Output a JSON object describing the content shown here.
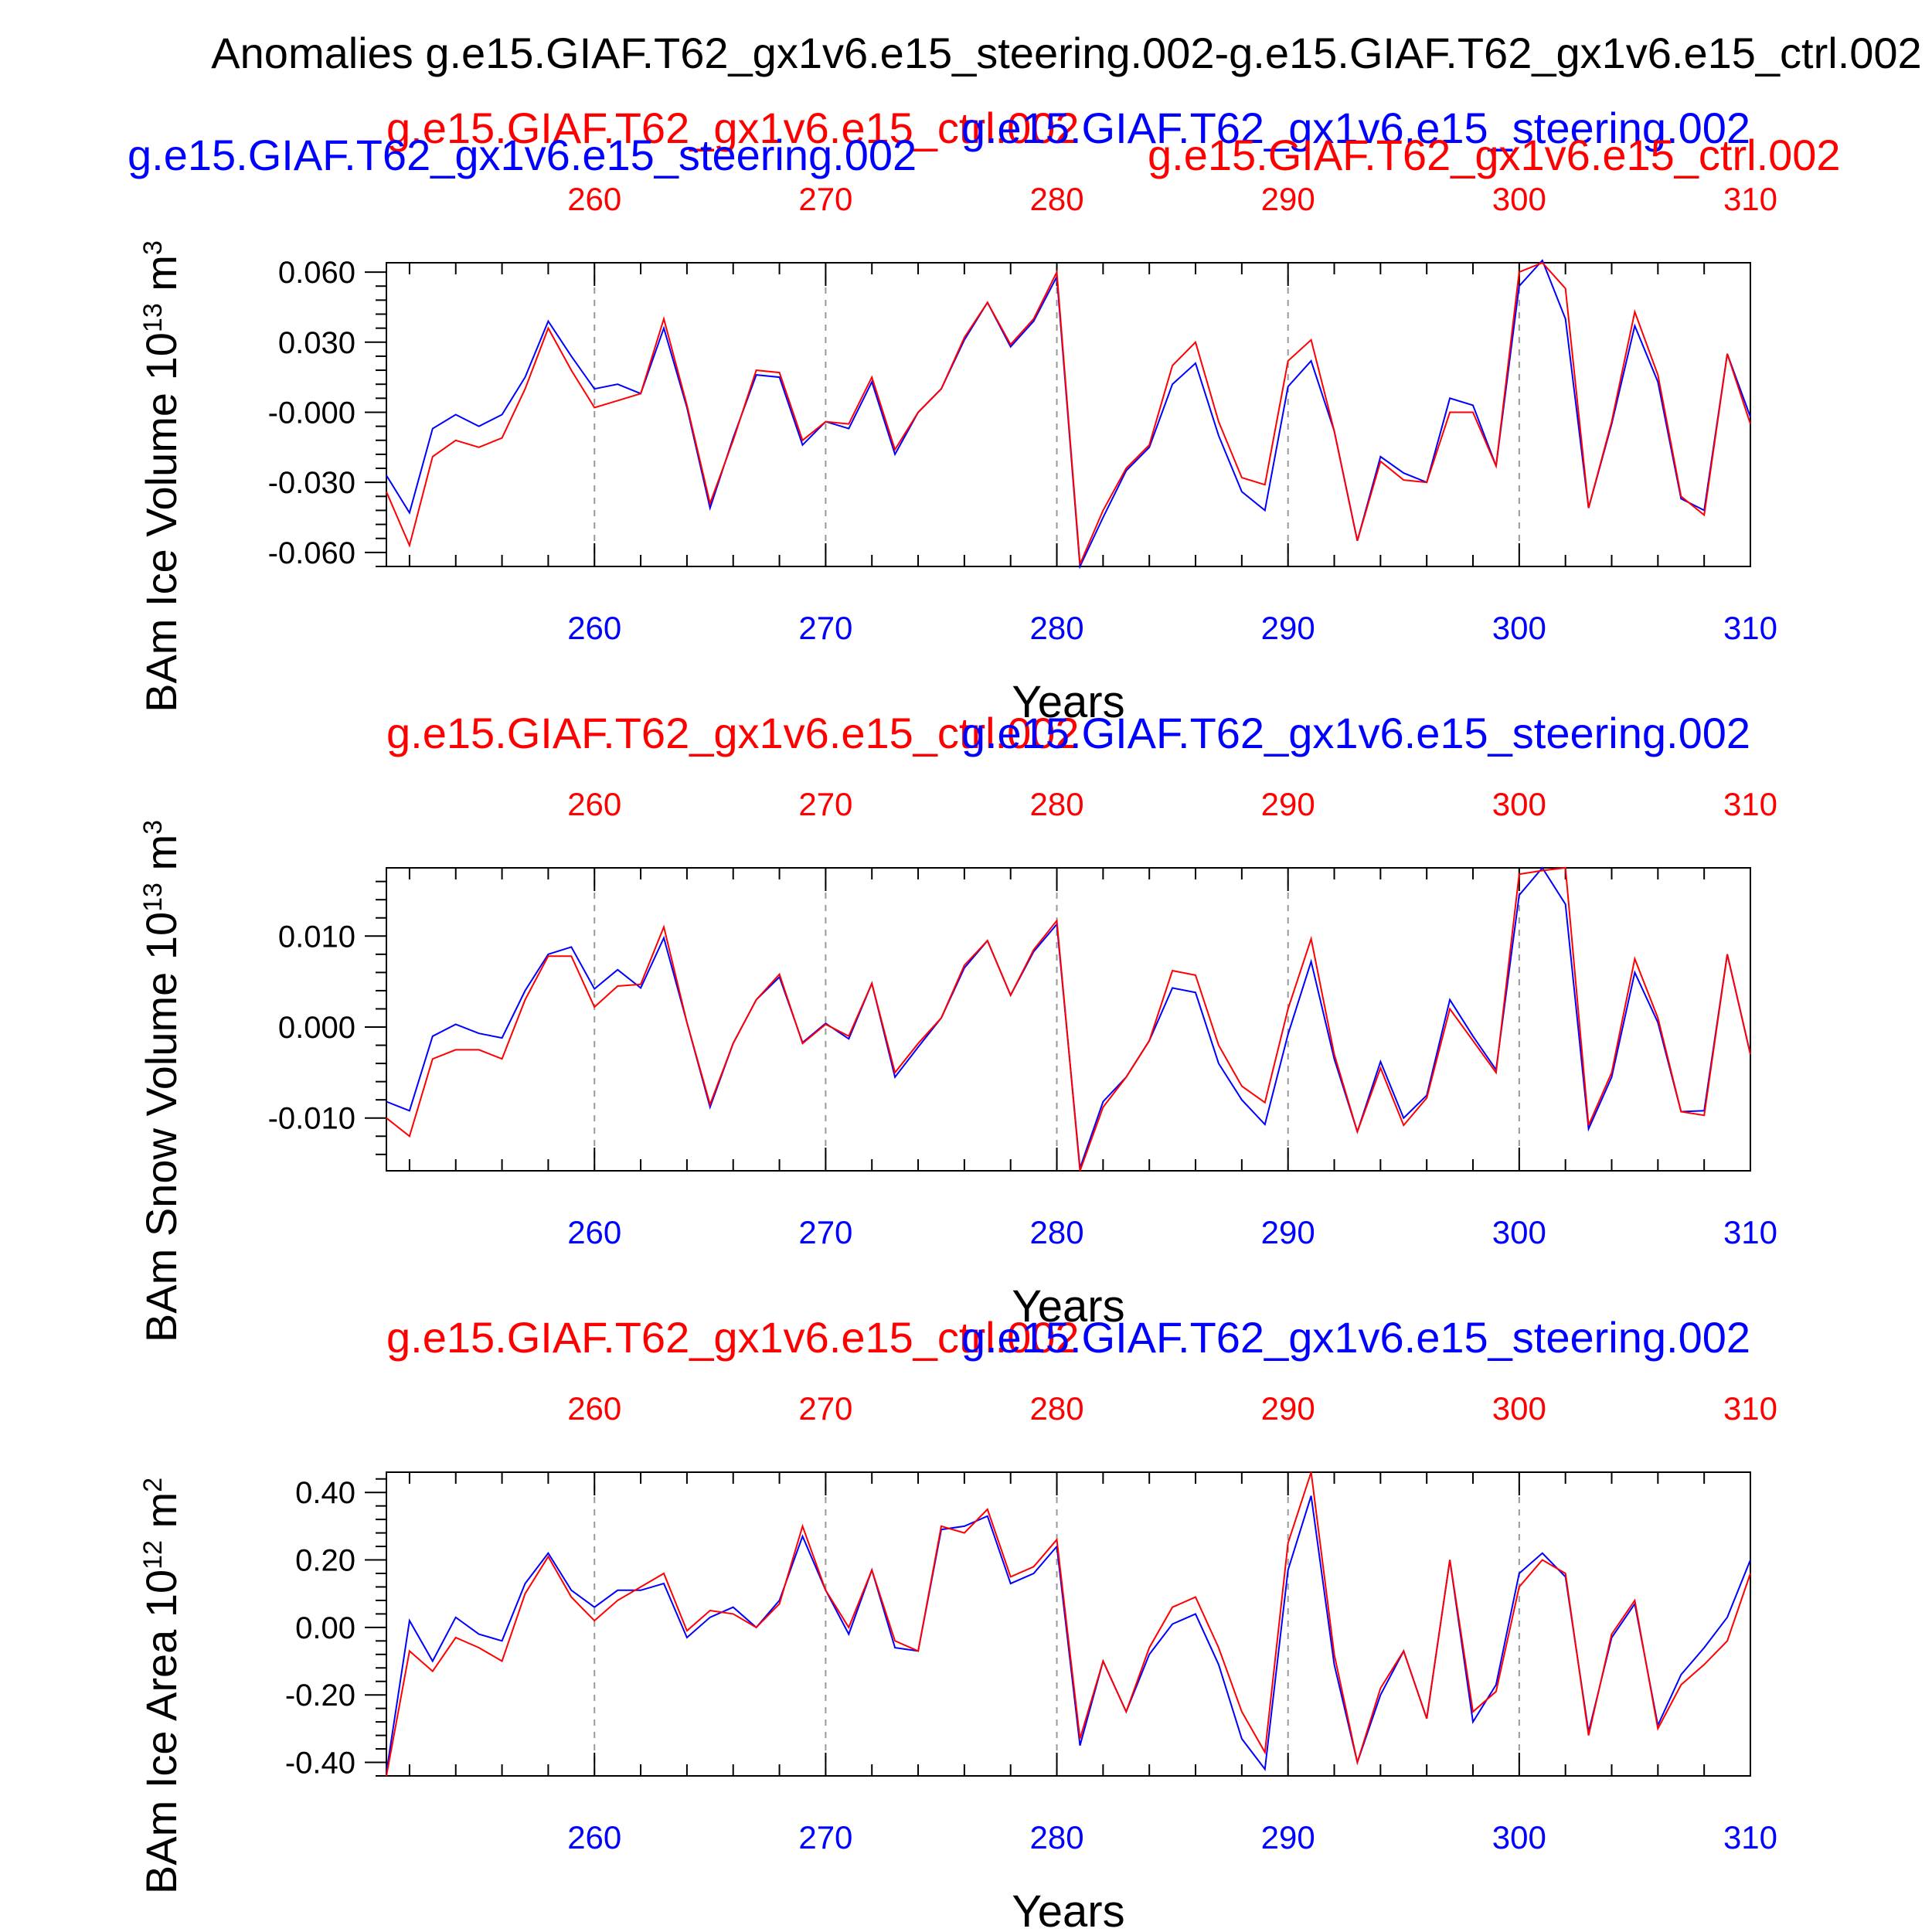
{
  "figure": {
    "title": "Anomalies g.e15.GIAF.T62_gx1v6.e15_steering.002-g.e15.GIAF.T62_gx1v6.e15_ctrl.002",
    "colors": {
      "blue": "#0000ff",
      "red": "#ff0000",
      "axis": "#000000",
      "grid": "#999999"
    }
  },
  "chart_data": [
    {
      "type": "line",
      "panel": 1,
      "ylabel": "BAm Ice Volume 10",
      "ylabel_exp": "13",
      "ylabel_unit": " m",
      "ylabel_unit_exp": "3",
      "xlabel": "Years",
      "top_labels": {
        "red": "g.e15.GIAF.T62_gx1v6.e15_ctrl.002",
        "blue": "g.e15.GIAF.T62_gx1v6.e15_steering.002"
      },
      "bottom_labels": {
        "blue": "g.e15.GIAF.T62_gx1v6.e15_steering.002",
        "red": "g.e15.GIAF.T62_gx1v6.e15_ctrl.002"
      },
      "xlim": [
        251,
        310
      ],
      "ylim": [
        -0.066,
        0.064
      ],
      "xticks": [
        260,
        270,
        280,
        290,
        300,
        310
      ],
      "xtick_labels": [
        "260",
        "270",
        "280",
        "290",
        "300",
        "310"
      ],
      "yticks": [
        0.06,
        0.03,
        0.0,
        -0.03,
        -0.06
      ],
      "ytick_labels": [
        "0.060",
        "0.030",
        "-0.000",
        "-0.030",
        "-0.060"
      ],
      "x_start": 251,
      "series": [
        {
          "name": "g.e15.GIAF.T62_gx1v6.e15_steering.002",
          "color": "#0000ff",
          "values": [
            -0.027,
            -0.043,
            -0.007,
            -0.001,
            -0.006,
            -0.001,
            0.015,
            0.039,
            0.024,
            0.01,
            0.012,
            0.008,
            0.036,
            0.002,
            -0.041,
            -0.011,
            0.016,
            0.015,
            -0.014,
            -0.004,
            -0.007,
            0.013,
            -0.018,
            0.0,
            0.01,
            0.031,
            0.047,
            0.028,
            0.039,
            0.058,
            -0.066,
            -0.045,
            -0.025,
            -0.015,
            0.012,
            0.021,
            -0.01,
            -0.034,
            -0.042,
            0.011,
            0.022,
            -0.008,
            -0.055,
            -0.019,
            -0.026,
            -0.03,
            0.006,
            0.003,
            -0.023,
            0.054,
            0.065,
            0.04,
            -0.041,
            -0.005,
            0.037,
            0.013,
            -0.037,
            -0.042,
            0.025,
            -0.002
          ]
        },
        {
          "name": "g.e15.GIAF.T62_gx1v6.e15_ctrl.002",
          "color": "#ff0000",
          "values": [
            -0.034,
            -0.057,
            -0.019,
            -0.012,
            -0.015,
            -0.011,
            0.01,
            0.036,
            0.018,
            0.002,
            0.005,
            0.008,
            0.04,
            0.003,
            -0.039,
            -0.012,
            0.018,
            0.017,
            -0.012,
            -0.004,
            -0.005,
            0.015,
            -0.016,
            0.0,
            0.01,
            0.032,
            0.047,
            0.029,
            0.04,
            0.06,
            -0.065,
            -0.042,
            -0.024,
            -0.014,
            0.02,
            0.03,
            -0.004,
            -0.028,
            -0.031,
            0.022,
            0.031,
            -0.008,
            -0.055,
            -0.021,
            -0.029,
            -0.03,
            0.0,
            0.0,
            -0.023,
            0.06,
            0.064,
            0.053,
            -0.041,
            -0.004,
            0.043,
            0.016,
            -0.036,
            -0.044,
            0.025,
            -0.005
          ]
        }
      ]
    },
    {
      "type": "line",
      "panel": 2,
      "ylabel": "BAm Snow Volume 10",
      "ylabel_exp": "13",
      "ylabel_unit": " m",
      "ylabel_unit_exp": "3",
      "xlabel": "Years",
      "top_labels": {
        "red": "g.e15.GIAF.T62_gx1v6.e15_ctrl.002",
        "blue": "g.e15.GIAF.T62_gx1v6.e15_steering.002"
      },
      "xlim": [
        251,
        310
      ],
      "ylim": [
        -0.0158,
        0.0175
      ],
      "xticks": [
        260,
        270,
        280,
        290,
        300,
        310
      ],
      "xtick_labels": [
        "260",
        "270",
        "280",
        "290",
        "300",
        "310"
      ],
      "yticks": [
        0.01,
        0.0,
        -0.01
      ],
      "ytick_labels": [
        "0.010",
        "0.000",
        "-0.010"
      ],
      "x_start": 251,
      "series": [
        {
          "name": "g.e15.GIAF.T62_gx1v6.e15_steering.002",
          "color": "#0000ff",
          "values": [
            -0.0082,
            -0.0092,
            -0.001,
            0.0003,
            -0.0007,
            -0.0012,
            0.004,
            0.008,
            0.0088,
            0.0042,
            0.0063,
            0.0043,
            0.0098,
            0.0005,
            -0.0088,
            -0.0018,
            0.003,
            0.0055,
            -0.0017,
            0.0004,
            -0.0013,
            0.0048,
            -0.0055,
            -0.0022,
            0.001,
            0.0065,
            0.0095,
            0.0035,
            0.0083,
            0.0113,
            -0.0155,
            -0.0082,
            -0.0055,
            -0.0015,
            0.0043,
            0.0038,
            -0.004,
            -0.008,
            -0.0107,
            -0.0008,
            0.0072,
            -0.0035,
            -0.0115,
            -0.0038,
            -0.01,
            -0.0075,
            0.003,
            -0.001,
            -0.0047,
            0.0145,
            0.0175,
            0.0135,
            -0.0112,
            -0.0055,
            0.006,
            0.0005,
            -0.0093,
            -0.0092,
            0.008,
            -0.003
          ]
        },
        {
          "name": "g.e15.GIAF.T62_gx1v6.e15_ctrl.002",
          "color": "#ff0000",
          "values": [
            -0.01,
            -0.012,
            -0.0035,
            -0.0025,
            -0.0025,
            -0.0035,
            0.003,
            0.0078,
            0.0078,
            0.0022,
            0.0045,
            0.0047,
            0.011,
            0.0005,
            -0.0085,
            -0.0018,
            0.003,
            0.0058,
            -0.0018,
            0.0003,
            -0.001,
            0.0048,
            -0.005,
            -0.0018,
            0.001,
            0.0068,
            0.0095,
            0.0035,
            0.0085,
            0.0117,
            -0.0158,
            -0.0088,
            -0.0055,
            -0.0015,
            0.0062,
            0.0057,
            -0.002,
            -0.0065,
            -0.0083,
            0.002,
            0.0097,
            -0.003,
            -0.0115,
            -0.0045,
            -0.0108,
            -0.0078,
            0.002,
            -0.0015,
            -0.005,
            0.0168,
            0.0172,
            0.0175,
            -0.0108,
            -0.005,
            0.0075,
            0.001,
            -0.0093,
            -0.0097,
            0.008,
            -0.003
          ]
        }
      ]
    },
    {
      "type": "line",
      "panel": 3,
      "ylabel": "BAm Ice Area 10",
      "ylabel_exp": "12",
      "ylabel_unit": " m",
      "ylabel_unit_exp": "2",
      "xlabel": "Years",
      "top_labels": {
        "red": "g.e15.GIAF.T62_gx1v6.e15_ctrl.002",
        "blue": "g.e15.GIAF.T62_gx1v6.e15_steering.002"
      },
      "xlim": [
        251,
        310
      ],
      "ylim": [
        -0.44,
        0.46
      ],
      "xticks": [
        260,
        270,
        280,
        290,
        300,
        310
      ],
      "xtick_labels": [
        "260",
        "270",
        "280",
        "290",
        "300",
        "310"
      ],
      "yticks": [
        0.4,
        0.2,
        0.0,
        -0.2,
        -0.4
      ],
      "ytick_labels": [
        "0.40",
        "0.20",
        "0.00",
        "-0.20",
        "-0.40"
      ],
      "x_start": 251,
      "series": [
        {
          "name": "g.e15.GIAF.T62_gx1v6.e15_steering.002",
          "color": "#0000ff",
          "values": [
            -0.43,
            0.02,
            -0.1,
            0.03,
            -0.02,
            -0.04,
            0.13,
            0.22,
            0.11,
            0.06,
            0.11,
            0.11,
            0.13,
            -0.03,
            0.03,
            0.06,
            0.0,
            0.08,
            0.27,
            0.11,
            -0.02,
            0.17,
            -0.06,
            -0.07,
            0.29,
            0.3,
            0.33,
            0.13,
            0.16,
            0.24,
            -0.35,
            -0.1,
            -0.25,
            -0.08,
            0.01,
            0.04,
            -0.11,
            -0.33,
            -0.42,
            0.17,
            0.39,
            -0.11,
            -0.4,
            -0.2,
            -0.07,
            -0.27,
            0.2,
            -0.28,
            -0.17,
            0.16,
            0.22,
            0.15,
            -0.31,
            -0.03,
            0.07,
            -0.29,
            -0.14,
            -0.06,
            0.03,
            0.2
          ]
        },
        {
          "name": "g.e15.GIAF.T62_gx1v6.e15_ctrl.002",
          "color": "#ff0000",
          "values": [
            -0.44,
            -0.07,
            -0.13,
            -0.03,
            -0.06,
            -0.1,
            0.1,
            0.21,
            0.09,
            0.02,
            0.08,
            0.12,
            0.16,
            -0.01,
            0.05,
            0.04,
            0.0,
            0.07,
            0.3,
            0.11,
            0.0,
            0.17,
            -0.04,
            -0.07,
            0.3,
            0.28,
            0.35,
            0.15,
            0.18,
            0.26,
            -0.33,
            -0.1,
            -0.25,
            -0.06,
            0.06,
            0.09,
            -0.06,
            -0.25,
            -0.37,
            0.25,
            0.46,
            -0.08,
            -0.4,
            -0.18,
            -0.07,
            -0.27,
            0.2,
            -0.25,
            -0.19,
            0.12,
            0.2,
            0.16,
            -0.32,
            -0.02,
            0.08,
            -0.3,
            -0.17,
            -0.11,
            -0.04,
            0.16
          ]
        }
      ]
    }
  ]
}
